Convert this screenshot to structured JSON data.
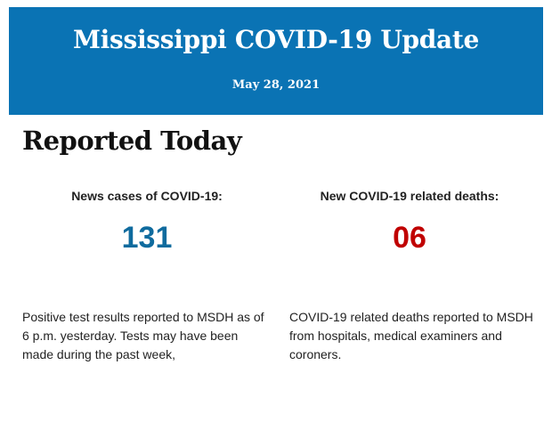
{
  "banner": {
    "title": "Mississippi COVID-19 Update",
    "date": "May 28, 2021",
    "background_color": "#0a73b4"
  },
  "section": {
    "heading": "Reported Today"
  },
  "stats": [
    {
      "label": "News cases of COVID-19:",
      "value": "131",
      "color": "#0f6b9e",
      "description": "Positive test results reported to MSDH as of 6 p.m. yesterday. Tests may have been made during the past week,"
    },
    {
      "label": "New COVID-19 related deaths:",
      "value": "06",
      "color": "#c00000",
      "description": "COVID-19 related deaths reported to MSDH from hospitals, medical examiners and coroners."
    }
  ]
}
